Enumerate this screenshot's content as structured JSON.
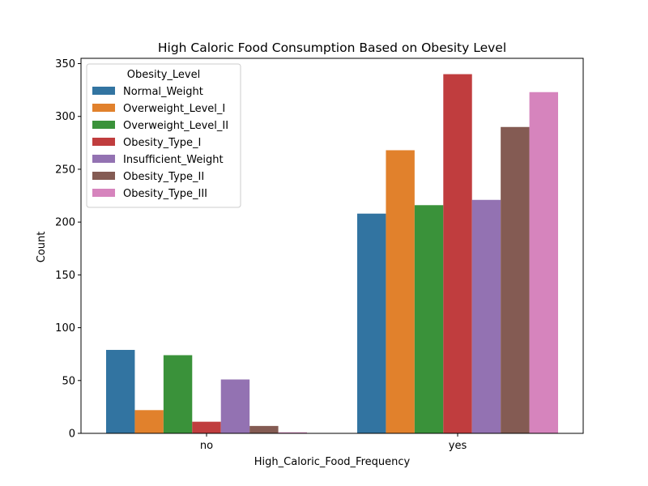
{
  "chart_data": {
    "type": "bar",
    "title": "High Caloric Food Consumption Based on Obesity Level",
    "xlabel": "High_Caloric_Food_Frequency",
    "ylabel": "Count",
    "categories": [
      "no",
      "yes"
    ],
    "ylim": [
      0,
      355
    ],
    "yticks": [
      0,
      50,
      100,
      150,
      200,
      250,
      300,
      350
    ],
    "grid": false,
    "legend": {
      "title": "Obesity_Level",
      "position": "top-left"
    },
    "series": [
      {
        "name": "Normal_Weight",
        "color": "#3274a1",
        "values": [
          79,
          208
        ]
      },
      {
        "name": "Overweight_Level_I",
        "color": "#e1812c",
        "values": [
          22,
          268
        ]
      },
      {
        "name": "Overweight_Level_II",
        "color": "#3a923a",
        "values": [
          74,
          216
        ]
      },
      {
        "name": "Obesity_Type_I",
        "color": "#c03d3e",
        "values": [
          11,
          340
        ]
      },
      {
        "name": "Insufficient_Weight",
        "color": "#9372b2",
        "values": [
          51,
          221
        ]
      },
      {
        "name": "Obesity_Type_II",
        "color": "#845b53",
        "values": [
          7,
          290
        ]
      },
      {
        "name": "Obesity_Type_III",
        "color": "#d684bd",
        "values": [
          1,
          323
        ]
      }
    ]
  }
}
